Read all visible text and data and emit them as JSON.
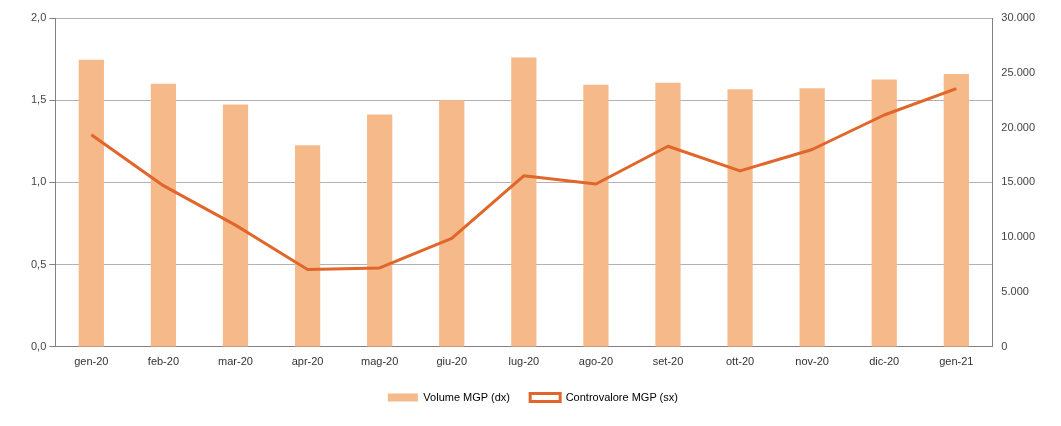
{
  "chart_data": {
    "type": "bar",
    "categories": [
      "gen-20",
      "feb-20",
      "mar-20",
      "apr-20",
      "mag-20",
      "giu-20",
      "lug-20",
      "ago-20",
      "set-20",
      "ott-20",
      "nov-20",
      "dic-20",
      "gen-21"
    ],
    "series": [
      {
        "name": "Volume MGP (dx)",
        "axis": "y2",
        "color": "#f5b98a",
        "values": [
          26200,
          24000,
          22100,
          18400,
          21200,
          22500,
          26400,
          23900,
          24100,
          23500,
          23600,
          24400,
          24900
        ]
      },
      {
        "name": "Controvalore MGP (sx)",
        "type": "line",
        "axis": "y",
        "color": "#e0662a",
        "values": [
          1.29,
          0.98,
          0.74,
          0.47,
          0.48,
          0.66,
          1.04,
          0.99,
          1.22,
          1.07,
          1.2,
          1.41,
          1.57
        ]
      }
    ],
    "ylim": [
      0,
      2
    ],
    "yticks": [
      {
        "value": 0,
        "label": "0,0"
      },
      {
        "value": 0.5,
        "label": "0,5"
      },
      {
        "value": 1,
        "label": "1,0"
      },
      {
        "value": 1.5,
        "label": "1,5"
      },
      {
        "value": 2,
        "label": "2,0"
      }
    ],
    "y2lim": [
      0,
      30000
    ],
    "y2ticks": [
      0,
      {
        "value": 5000,
        "label": "5.000"
      },
      {
        "value": 10000,
        "label": "10.000"
      },
      {
        "value": 15000,
        "label": "15.000"
      },
      {
        "value": 20000,
        "label": "20.000"
      },
      {
        "value": 25000,
        "label": "25.000"
      },
      {
        "value": 30000,
        "label": "30.000"
      }
    ],
    "grid": "y",
    "legend": "bottom",
    "marker": "none",
    "line_style": "solid"
  }
}
